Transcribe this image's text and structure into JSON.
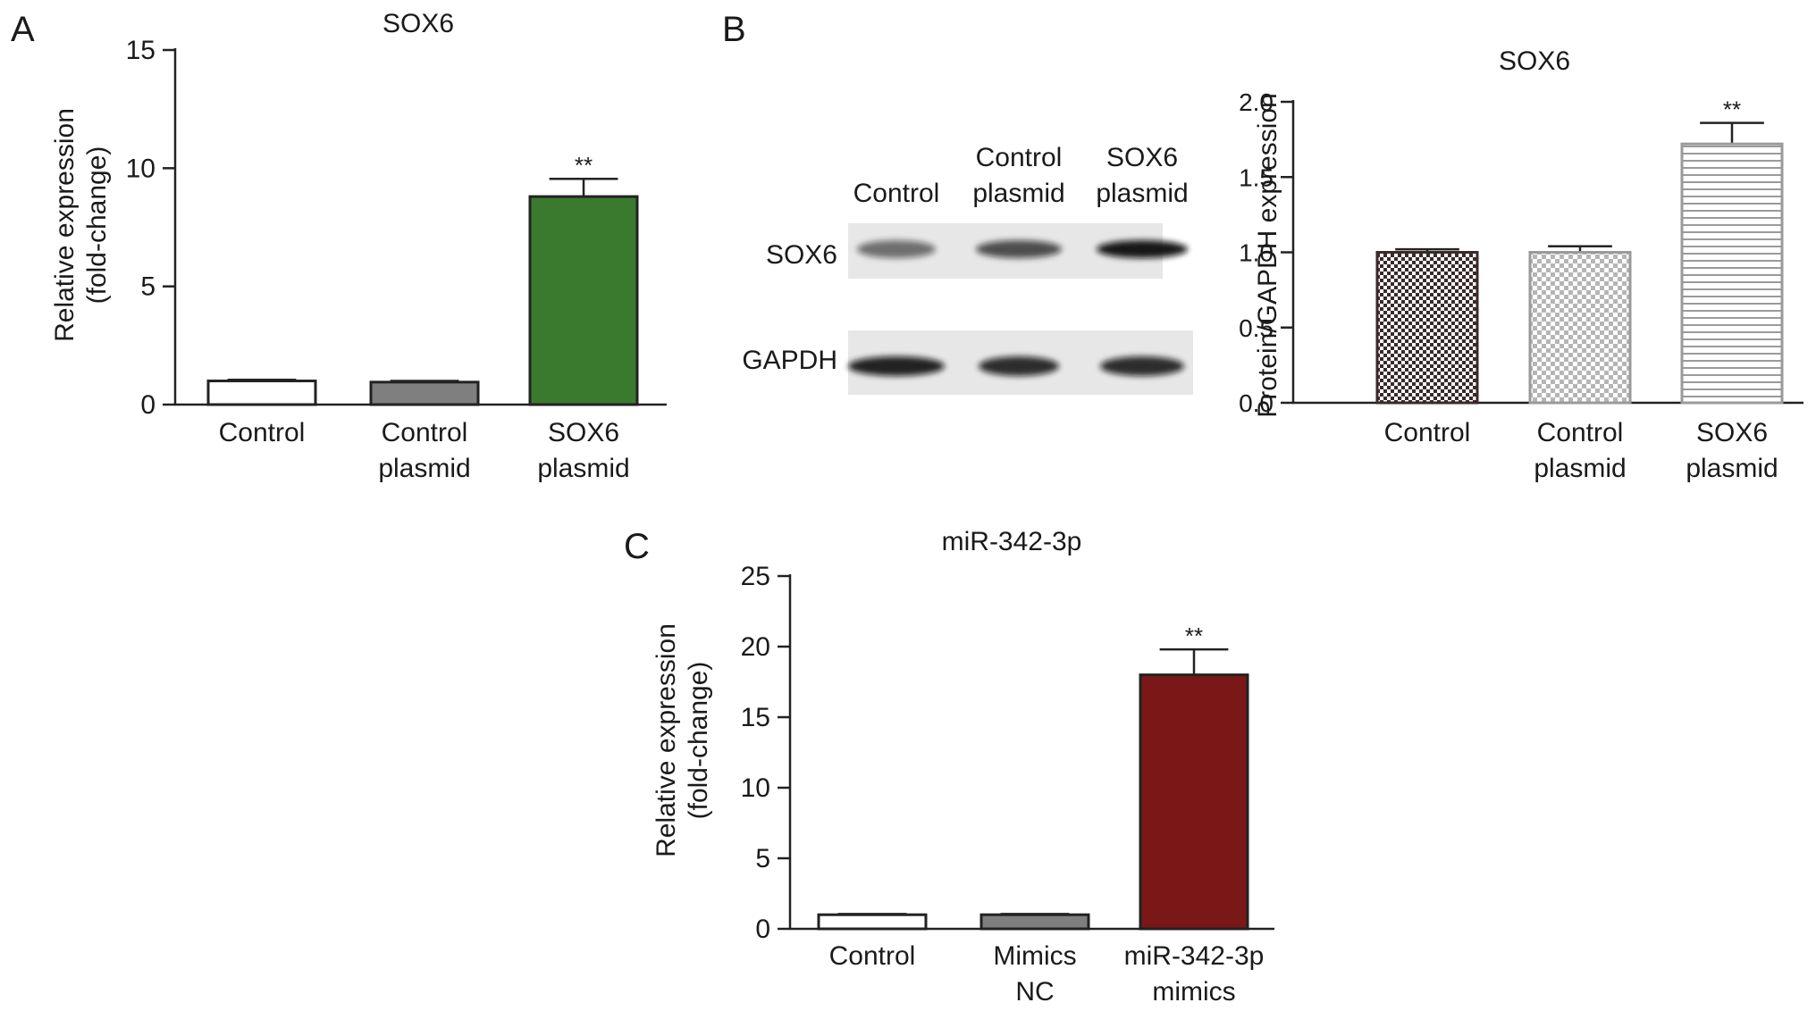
{
  "panels": {
    "A": {
      "letter": "A"
    },
    "B": {
      "letter": "B"
    },
    "C": {
      "letter": "C"
    }
  },
  "blot": {
    "column_labels": [
      [
        "Control"
      ],
      [
        "Control",
        "plasmid"
      ],
      [
        "SOX6",
        "plasmid"
      ]
    ],
    "row_labels": [
      "SOX6",
      "GAPDH"
    ],
    "band_intensity": {
      "SOX6": [
        0.55,
        0.7,
        0.95
      ],
      "GAPDH": [
        0.9,
        0.85,
        0.85
      ]
    }
  },
  "chart_data": [
    {
      "panel": "A",
      "type": "bar",
      "title": "SOX6",
      "ylabel": [
        "Relative expression",
        "(fold-change)"
      ],
      "categories": [
        [
          "Control"
        ],
        [
          "Control",
          "plasmid"
        ],
        [
          "SOX6",
          "plasmid"
        ]
      ],
      "values": [
        1.0,
        0.95,
        8.8
      ],
      "errors": [
        0.05,
        0.05,
        0.75
      ],
      "significance": [
        "",
        "",
        "**"
      ],
      "ylim": [
        0,
        15
      ],
      "yticks": [
        0,
        5,
        10,
        15
      ],
      "colors": [
        "#ffffff",
        "#7f7f7f",
        "#3a7a2e"
      ],
      "patterns": [
        "solid",
        "solid",
        "solid"
      ]
    },
    {
      "panel": "B",
      "type": "bar",
      "title": "SOX6",
      "ylabel": [
        "Protein/GAPDH expression"
      ],
      "categories": [
        [
          "Control"
        ],
        [
          "Control",
          "plasmid"
        ],
        [
          "SOX6",
          "plasmid"
        ]
      ],
      "values": [
        1.0,
        1.0,
        1.72
      ],
      "errors": [
        0.02,
        0.04,
        0.14
      ],
      "significance": [
        "",
        "",
        "**"
      ],
      "ylim": [
        0,
        2.0
      ],
      "yticks": [
        "0.0",
        "0.5",
        "1.0",
        "1.5",
        "2.0"
      ],
      "colors": [
        "#3a2a2a",
        "#9a9a9a",
        "#9a9a9a"
      ],
      "patterns": [
        "dense-check",
        "check",
        "horizontal-lines"
      ]
    },
    {
      "panel": "C",
      "type": "bar",
      "title": "miR-342-3p",
      "ylabel": [
        "Relative expression",
        "(fold-change)"
      ],
      "categories": [
        [
          "Control"
        ],
        [
          "Mimics",
          "NC"
        ],
        [
          "miR-342-3p",
          "mimics"
        ]
      ],
      "values": [
        1.0,
        1.0,
        18.0
      ],
      "errors": [
        0.05,
        0.05,
        1.8
      ],
      "significance": [
        "",
        "",
        "**"
      ],
      "ylim": [
        0,
        25
      ],
      "yticks": [
        0,
        5,
        10,
        15,
        20,
        25
      ],
      "colors": [
        "#ffffff",
        "#7f7f7f",
        "#7a1818"
      ],
      "patterns": [
        "solid",
        "solid",
        "solid"
      ]
    }
  ]
}
